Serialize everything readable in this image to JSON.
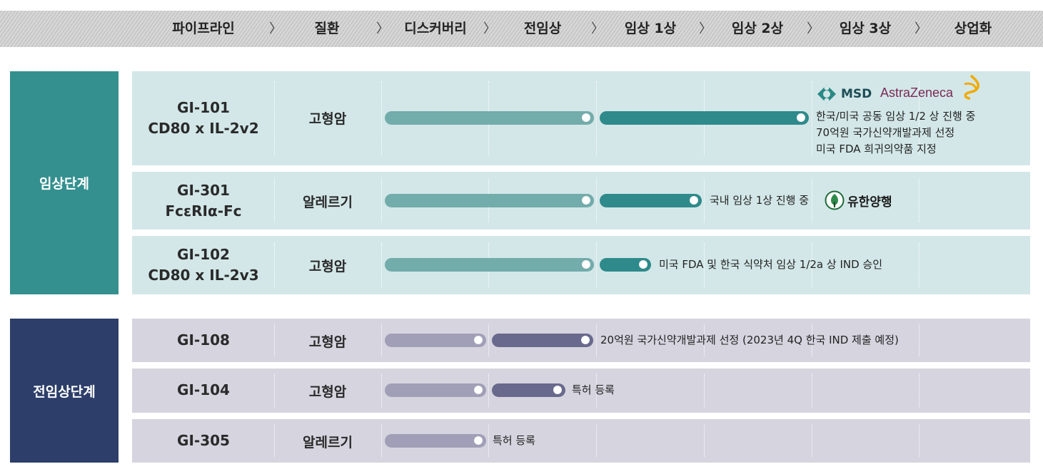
{
  "header": {
    "stages": [
      "파이프라인",
      "질환",
      "디스커버리",
      "전임상",
      "임상 1상",
      "임상 2상",
      "임상 3상",
      "상업화"
    ],
    "separator": "〉"
  },
  "groups": {
    "clinical": {
      "label": "임상단계",
      "color": "#33908f"
    },
    "preclinical": {
      "label": "전임상단계",
      "color": "#2c3e69"
    }
  },
  "colors": {
    "clinical_row_bg": "#d3e7e8",
    "preclinical_row_bg": "#d6d4df",
    "clinical_bar_light": "#72acab",
    "clinical_bar_dark": "#2e8a8b",
    "preclinical_bar_light": "#a19fb7",
    "preclinical_bar_dark": "#69698d"
  },
  "clinical_rows": [
    {
      "drug_line1": "GI-101",
      "drug_line2": "CD80 x IL-2v2",
      "disease": "고형암",
      "notes": [
        "한국/미국 공동 임상 1/2 상 진행 중",
        "70억원 국가신약개발과제 선정",
        "미국 FDA 희귀의약품 지정"
      ],
      "logos": [
        "MSD",
        "AstraZeneca"
      ]
    },
    {
      "drug_line1": "GI-301",
      "drug_line2": "FcεRIα-Fc",
      "disease": "알레르기",
      "notes": [
        "국내 임상 1상 진행 중"
      ],
      "logos": [
        "유한양행"
      ]
    },
    {
      "drug_line1": "GI-102",
      "drug_line2": "CD80 x IL-2v3",
      "disease": "고형암",
      "notes": [
        "미국 FDA 및 한국 식약처 임상 1/2a 상 IND 승인"
      ]
    }
  ],
  "preclinical_rows": [
    {
      "drug": "GI-108",
      "disease": "고형암",
      "note": "20억원 국가신약개발과제 선정 (2023년 4Q 한국 IND 제출 예정)"
    },
    {
      "drug": "GI-104",
      "disease": "고형암",
      "note": "특허 등록"
    },
    {
      "drug": "GI-305",
      "disease": "알레르기",
      "note": "특허 등록"
    }
  ]
}
